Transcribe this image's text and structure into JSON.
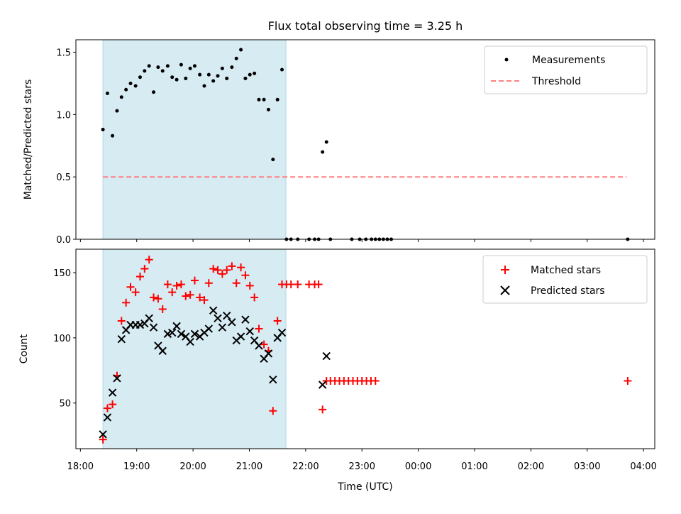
{
  "chart_data": [
    {
      "type": "scatter",
      "title": "Flux total observing time = 3.25 h",
      "xlabel": "",
      "ylabel": "Matched/Predicted stars",
      "ylim": [
        0,
        1.6
      ],
      "yticks": [
        0.0,
        0.5,
        1.0,
        1.5
      ],
      "ytick_labels": [
        "0.0",
        "0.5",
        "1.0",
        "1.5"
      ],
      "x_units": "hours since 18:00 UTC",
      "xlim": [
        -0.08,
        10.2
      ],
      "shaded_interval": [
        0.4,
        3.65
      ],
      "legend": [
        "Measurements",
        "Threshold"
      ],
      "legend_position": "upper right",
      "threshold": {
        "name": "Threshold",
        "y": 0.5,
        "x_start": 0.4,
        "x_end": 9.7,
        "color": "#ff7f7f"
      },
      "series": [
        {
          "name": "Measurements",
          "color": "#000000",
          "x": [
            0.4,
            0.48,
            0.57,
            0.65,
            0.73,
            0.81,
            0.89,
            0.98,
            1.06,
            1.14,
            1.22,
            1.3,
            1.38,
            1.46,
            1.55,
            1.63,
            1.71,
            1.79,
            1.87,
            1.95,
            2.03,
            2.12,
            2.2,
            2.28,
            2.36,
            2.44,
            2.52,
            2.6,
            2.69,
            2.77,
            2.85,
            2.93,
            3.01,
            3.09,
            3.17,
            3.26,
            3.34,
            3.42,
            3.5,
            3.58,
            3.66,
            3.74,
            3.86,
            4.06,
            4.16,
            4.23,
            4.3,
            4.37,
            4.44,
            4.82,
            4.96,
            5.07,
            5.17,
            5.24,
            5.31,
            5.38,
            5.45,
            5.52,
            9.72
          ],
          "values": [
            0.88,
            1.17,
            0.83,
            1.03,
            1.14,
            1.2,
            1.25,
            1.23,
            1.3,
            1.35,
            1.39,
            1.18,
            1.38,
            1.35,
            1.39,
            1.3,
            1.28,
            1.4,
            1.29,
            1.37,
            1.39,
            1.32,
            1.23,
            1.32,
            1.27,
            1.31,
            1.37,
            1.29,
            1.38,
            1.45,
            1.52,
            1.29,
            1.32,
            1.33,
            1.12,
            1.12,
            1.04,
            0.64,
            1.12,
            1.36,
            0.0,
            0.0,
            0.0,
            0.0,
            0.0,
            0.0,
            0.7,
            0.78,
            0.0,
            0.0,
            0.0,
            0.0,
            0.0,
            0.0,
            0.0,
            0.0,
            0.0,
            0.0,
            0.0
          ]
        }
      ]
    },
    {
      "type": "scatter",
      "title": "",
      "xlabel": "Time (UTC)",
      "ylabel": "Count",
      "ylim": [
        15,
        168
      ],
      "yticks": [
        50,
        100,
        150
      ],
      "ytick_labels": [
        "50",
        "100",
        "150"
      ],
      "x_units": "hours since 18:00 UTC",
      "xlim": [
        -0.08,
        10.2
      ],
      "xticks": [
        0,
        1,
        2,
        3,
        4,
        5,
        6,
        7,
        8,
        9,
        10
      ],
      "xtick_labels": [
        "18:00",
        "19:00",
        "20:00",
        "21:00",
        "22:00",
        "23:00",
        "00:00",
        "01:00",
        "02:00",
        "03:00",
        "04:00"
      ],
      "shaded_interval": [
        0.4,
        3.65
      ],
      "legend": [
        "Matched stars",
        "Predicted stars"
      ],
      "legend_position": "upper right",
      "series": [
        {
          "name": "Matched stars",
          "marker": "+",
          "color": "#ff0000",
          "x": [
            0.4,
            0.48,
            0.57,
            0.65,
            0.73,
            0.81,
            0.89,
            0.98,
            1.06,
            1.14,
            1.22,
            1.3,
            1.38,
            1.46,
            1.55,
            1.63,
            1.71,
            1.79,
            1.87,
            1.95,
            2.03,
            2.12,
            2.2,
            2.28,
            2.36,
            2.44,
            2.52,
            2.6,
            2.69,
            2.77,
            2.85,
            2.93,
            3.01,
            3.09,
            3.17,
            3.26,
            3.34,
            3.42,
            3.5,
            3.58,
            3.66,
            3.74,
            3.86,
            4.06,
            4.16,
            4.23,
            4.3,
            4.37,
            4.44,
            4.52,
            4.6,
            4.68,
            4.76,
            4.84,
            4.92,
            5.0,
            5.08,
            5.16,
            5.24,
            9.72
          ],
          "values": [
            22,
            46,
            49,
            71,
            113,
            127,
            139,
            135,
            147,
            153,
            160,
            131,
            130,
            122,
            141,
            135,
            140,
            141,
            132,
            133,
            144,
            131,
            129,
            142,
            153,
            152,
            149,
            152,
            155,
            142,
            154,
            148,
            140,
            131,
            107,
            95,
            90,
            44,
            113,
            141,
            141,
            141,
            141,
            141,
            141,
            141,
            45,
            67,
            67,
            67,
            67,
            67,
            67,
            67,
            67,
            67,
            67,
            67,
            67,
            67
          ]
        },
        {
          "name": "Predicted stars",
          "marker": "x",
          "color": "#000000",
          "x": [
            0.4,
            0.48,
            0.57,
            0.65,
            0.73,
            0.81,
            0.89,
            0.98,
            1.06,
            1.14,
            1.22,
            1.3,
            1.38,
            1.46,
            1.55,
            1.63,
            1.71,
            1.79,
            1.87,
            1.95,
            2.03,
            2.12,
            2.2,
            2.28,
            2.36,
            2.44,
            2.52,
            2.6,
            2.69,
            2.77,
            2.85,
            2.93,
            3.01,
            3.09,
            3.17,
            3.26,
            3.34,
            3.42,
            3.5,
            3.58,
            4.3,
            4.37
          ],
          "values": [
            26,
            39,
            58,
            69,
            99,
            106,
            110,
            110,
            110,
            111,
            115,
            108,
            94,
            90,
            103,
            104,
            109,
            103,
            101,
            97,
            103,
            101,
            104,
            107,
            121,
            115,
            108,
            117,
            112,
            98,
            101,
            114,
            105,
            98,
            94,
            84,
            88,
            68,
            100,
            104,
            64,
            86
          ]
        }
      ]
    }
  ]
}
